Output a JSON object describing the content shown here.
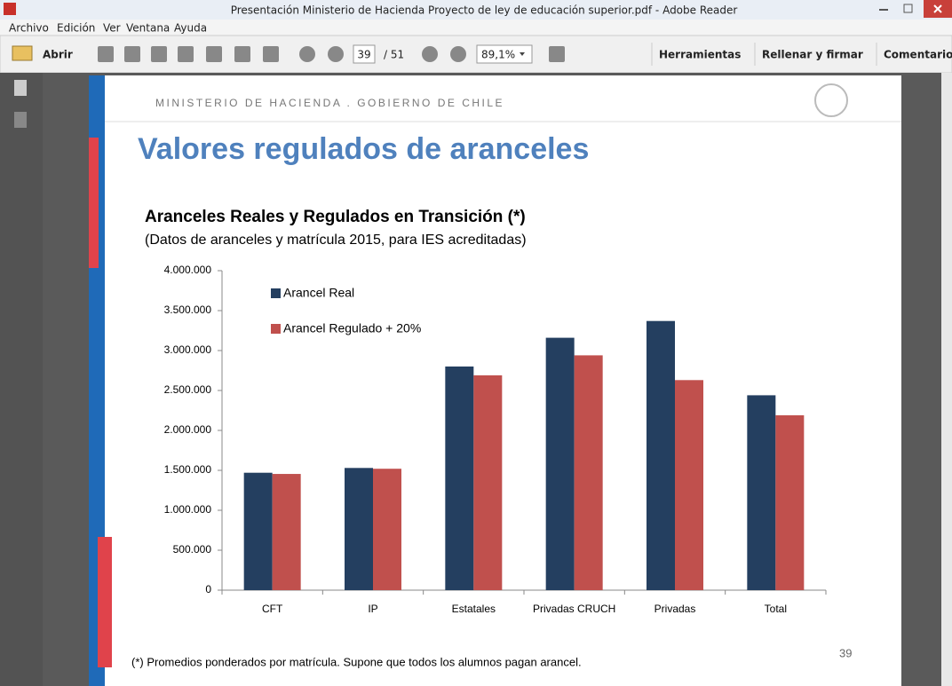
{
  "window": {
    "title": "Presentación Ministerio de Hacienda Proyecto de ley de educación superior.pdf - Adobe Reader"
  },
  "menu": [
    "Archivo",
    "Edición",
    "Ver",
    "Ventana",
    "Ayuda"
  ],
  "toolbar": {
    "open": "Abrir",
    "page": "39",
    "page_total": "/ 51",
    "zoom": "89,1%",
    "tools": [
      "Herramientas",
      "Rellenar y firmar",
      "Comentario"
    ]
  },
  "slide": {
    "header": "MINISTERIO DE HACIENDA . GOBIERNO DE CHILE",
    "title": "Valores regulados de aranceles",
    "footnote": "(*) Promedios ponderados por matrícula. Supone que todos los alumnos pagan arancel.",
    "page_number": "39"
  },
  "chart_data": {
    "type": "bar",
    "title": "Aranceles Reales y Regulados en Transición (*)",
    "subtitle": "(Datos de aranceles y matrícula 2015, para IES acreditadas)",
    "categories": [
      "CFT",
      "IP",
      "Estatales",
      "Privadas CRUCH",
      "Privadas",
      "Total"
    ],
    "series": [
      {
        "name": "Arancel Real",
        "color": "#243f60",
        "values": [
          1470000,
          1530000,
          2800000,
          3160000,
          3370000,
          2440000
        ]
      },
      {
        "name": "Arancel Regulado + 20%",
        "color": "#c0504d",
        "values": [
          1455000,
          1520000,
          2690000,
          2940000,
          2630000,
          2190000
        ]
      }
    ],
    "ylim": [
      0,
      4000000
    ],
    "yticks": [
      0,
      {
        "value": 500000,
        "label": "500.000"
      },
      {
        "value": 1000000,
        "label": "1.000.000"
      },
      {
        "value": 1500000,
        "label": "1.500.000"
      },
      {
        "value": 2000000,
        "label": "2.000.000"
      },
      {
        "value": 2500000,
        "label": "2.500.000"
      },
      {
        "value": 3000000,
        "label": "3.000.000"
      },
      {
        "value": 3500000,
        "label": "3.500.000"
      },
      {
        "value": 4000000,
        "label": "4.000.000"
      }
    ],
    "legend": "top-left",
    "grid": false
  }
}
